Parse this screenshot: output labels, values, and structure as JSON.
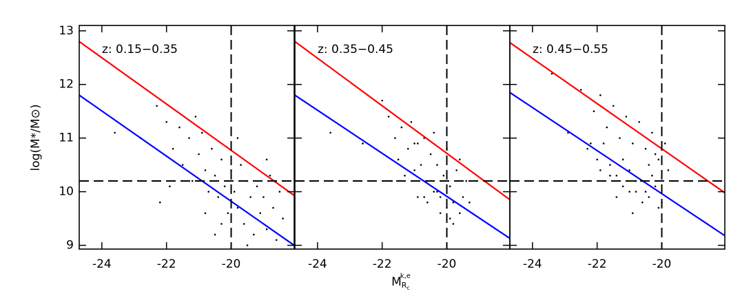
{
  "y_label": "log(M*/M⊙)",
  "x_label": {
    "base": "M",
    "sub": "R",
    "subsub": "c",
    "sup": "k,e"
  },
  "chart_data": [
    {
      "type": "scatter",
      "annotation": "z:  0.15−0.35",
      "xlim": [
        -24.7,
        -18.05
      ],
      "xticks": [
        -24,
        -22,
        -20
      ],
      "ylim": [
        8.93,
        13.1
      ],
      "yticks": [
        9,
        10,
        11,
        12,
        13
      ],
      "vline": -20,
      "hline": 10.2,
      "series": [
        {
          "mode": "points",
          "color": "#000000",
          "x": [
            -23.6,
            -22.8,
            -22.3,
            -22.0,
            -21.8,
            -21.6,
            -21.5,
            -21.3,
            -21.2,
            -21.0,
            -20.9,
            -20.8,
            -20.7,
            -20.6,
            -20.5,
            -20.4,
            -20.3,
            -20.2,
            -20.1,
            -20.0,
            -19.9,
            -19.8,
            -19.7,
            -19.6,
            -19.5,
            -19.4,
            -19.3,
            -19.2,
            -19.1,
            -19.0,
            -18.9,
            -18.8,
            -18.7,
            -18.6,
            -18.5,
            -18.4,
            -21.9,
            -22.2,
            -20.5,
            -19.8,
            -21.1,
            -20.3,
            -19.5,
            -18.9,
            -20.8
          ],
          "values": [
            11.1,
            11.0,
            11.6,
            11.3,
            10.8,
            11.2,
            10.5,
            11.0,
            10.2,
            10.7,
            11.1,
            10.4,
            10.0,
            10.8,
            10.3,
            9.9,
            10.6,
            10.1,
            9.6,
            10.4,
            10.0,
            9.7,
            10.5,
            9.4,
            10.2,
            9.9,
            9.2,
            10.1,
            9.6,
            9.9,
            9.3,
            10.3,
            9.7,
            9.1,
            10.0,
            9.5,
            10.1,
            9.8,
            9.2,
            11.0,
            11.4,
            9.4,
            9.0,
            10.6,
            9.6
          ]
        },
        {
          "mode": "line",
          "color": "#ff0000",
          "x": [
            -24.7,
            -18.05
          ],
          "values": [
            12.8,
            9.93
          ]
        },
        {
          "mode": "line",
          "color": "#0000ff",
          "x": [
            -24.7,
            -18.05
          ],
          "values": [
            11.8,
            9.0
          ]
        }
      ]
    },
    {
      "type": "scatter",
      "annotation": "z:  0.35−0.45",
      "xlim": [
        -24.7,
        -18.05
      ],
      "xticks": [
        -24,
        -22,
        -20
      ],
      "ylim": [
        8.93,
        13.1
      ],
      "yticks": [
        9,
        10,
        11,
        12,
        13
      ],
      "vline": -20,
      "hline": 10.2,
      "series": [
        {
          "mode": "points",
          "color": "#000000",
          "x": [
            -23.6,
            -22.6,
            -22.0,
            -21.8,
            -21.6,
            -21.5,
            -21.4,
            -21.2,
            -21.1,
            -21.0,
            -20.9,
            -20.8,
            -20.7,
            -20.6,
            -20.5,
            -20.4,
            -20.3,
            -20.2,
            -20.1,
            -20.0,
            -19.9,
            -19.8,
            -19.7,
            -19.6,
            -19.5,
            -19.4,
            -19.3,
            -21.3,
            -20.6,
            -20.2,
            -19.9,
            -20.4,
            -21.7,
            -20.9,
            -20.0,
            -19.6,
            -21.0,
            -20.7,
            -19.8,
            -20.3
          ],
          "values": [
            11.1,
            10.9,
            11.7,
            11.4,
            11.0,
            10.6,
            11.2,
            10.8,
            11.3,
            10.4,
            10.9,
            10.5,
            11.0,
            10.2,
            10.7,
            10.0,
            10.5,
            9.9,
            10.3,
            9.7,
            10.1,
            9.8,
            10.4,
            9.6,
            9.9,
            10.2,
            9.8,
            10.3,
            9.8,
            9.6,
            9.5,
            11.1,
            10.2,
            9.9,
            10.8,
            10.6,
            10.9,
            9.9,
            9.4,
            10.0
          ]
        },
        {
          "mode": "line",
          "color": "#ff0000",
          "x": [
            -24.7,
            -18.05
          ],
          "values": [
            12.8,
            9.85
          ]
        },
        {
          "mode": "line",
          "color": "#0000ff",
          "x": [
            -24.7,
            -18.05
          ],
          "values": [
            11.8,
            9.13
          ]
        }
      ]
    },
    {
      "type": "scatter",
      "annotation": "z:  0.45−0.55",
      "xlim": [
        -24.7,
        -18.05
      ],
      "xticks": [
        -24,
        -22,
        -20
      ],
      "ylim": [
        8.93,
        13.1
      ],
      "yticks": [
        9,
        10,
        11,
        12,
        13
      ],
      "vline": -20,
      "hline": 10.2,
      "series": [
        {
          "mode": "points",
          "color": "#000000",
          "x": [
            -23.4,
            -22.9,
            -22.5,
            -22.3,
            -22.1,
            -22.0,
            -21.9,
            -21.8,
            -21.7,
            -21.6,
            -21.5,
            -21.4,
            -21.3,
            -21.2,
            -21.1,
            -21.0,
            -20.9,
            -20.8,
            -20.7,
            -20.6,
            -20.5,
            -20.4,
            -20.3,
            -20.2,
            -20.1,
            -20.0,
            -19.9,
            -19.8,
            -21.6,
            -21.2,
            -20.8,
            -20.4,
            -20.1,
            -21.9,
            -21.0,
            -20.6,
            -20.3,
            -22.2,
            -21.4,
            -20.9,
            -20.5,
            -20.2
          ],
          "values": [
            12.2,
            11.1,
            11.9,
            10.8,
            11.5,
            10.6,
            11.8,
            10.9,
            11.2,
            10.5,
            11.6,
            10.3,
            11.0,
            10.1,
            11.4,
            10.4,
            10.9,
            10.0,
            11.3,
            10.2,
            10.8,
            9.9,
            11.1,
            10.1,
            10.6,
            9.8,
            10.9,
            10.4,
            10.3,
            10.6,
            10.2,
            10.5,
            9.7,
            10.4,
            10.0,
            9.8,
            10.3,
            10.9,
            9.9,
            9.6,
            10.0,
            10.7
          ]
        },
        {
          "mode": "line",
          "color": "#ff0000",
          "x": [
            -24.7,
            -18.05
          ],
          "values": [
            12.78,
            9.98
          ]
        },
        {
          "mode": "line",
          "color": "#0000ff",
          "x": [
            -24.7,
            -18.05
          ],
          "values": [
            11.85,
            9.18
          ]
        }
      ]
    }
  ]
}
